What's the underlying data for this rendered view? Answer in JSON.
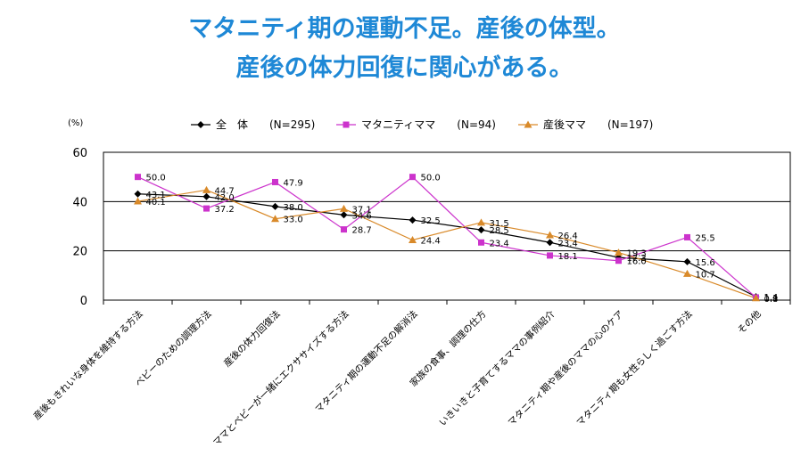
{
  "title_line1": "マタニティ期の運動不足。産後の体型。",
  "title_line2": "産後の体力回復に関心がある。",
  "chart_data": {
    "type": "line",
    "y_unit": "(%)",
    "ylim": [
      0,
      60
    ],
    "yticks": [
      0,
      20,
      40,
      60
    ],
    "grid": true,
    "legend_position": "top",
    "categories": [
      "産後もきれいな身体を維持する方法",
      "ベビーのための調理方法",
      "産後の体力回復法",
      "ママとベビーが一緒にエクササイズする方法",
      "マタニティ期の運動不足の解消法",
      "家族の食事、調理の仕方",
      "いきいきと子育てするママの事例紹介",
      "マタニティ期や産後のママの心のケア",
      "マタニティ期も女性らしく過ごす方法",
      "その他"
    ],
    "series": [
      {
        "name": "全　体　　(N=295)",
        "color": "#000000",
        "marker": "diamond",
        "values": [
          43.1,
          42.0,
          38.0,
          34.6,
          32.5,
          28.5,
          23.4,
          17.3,
          15.6,
          1.4
        ]
      },
      {
        "name": "マタニティママ　　(N=94)",
        "color": "#cc33cc",
        "marker": "square",
        "values": [
          50.0,
          37.2,
          47.9,
          28.7,
          50.0,
          23.4,
          18.1,
          16.0,
          25.5,
          1.1
        ]
      },
      {
        "name": "産後ママ　　(N=197)",
        "color": "#d98a2a",
        "marker": "triangle",
        "values": [
          40.1,
          44.7,
          33.0,
          37.1,
          24.4,
          31.5,
          26.4,
          19.3,
          10.7,
          0.8
        ]
      }
    ]
  }
}
